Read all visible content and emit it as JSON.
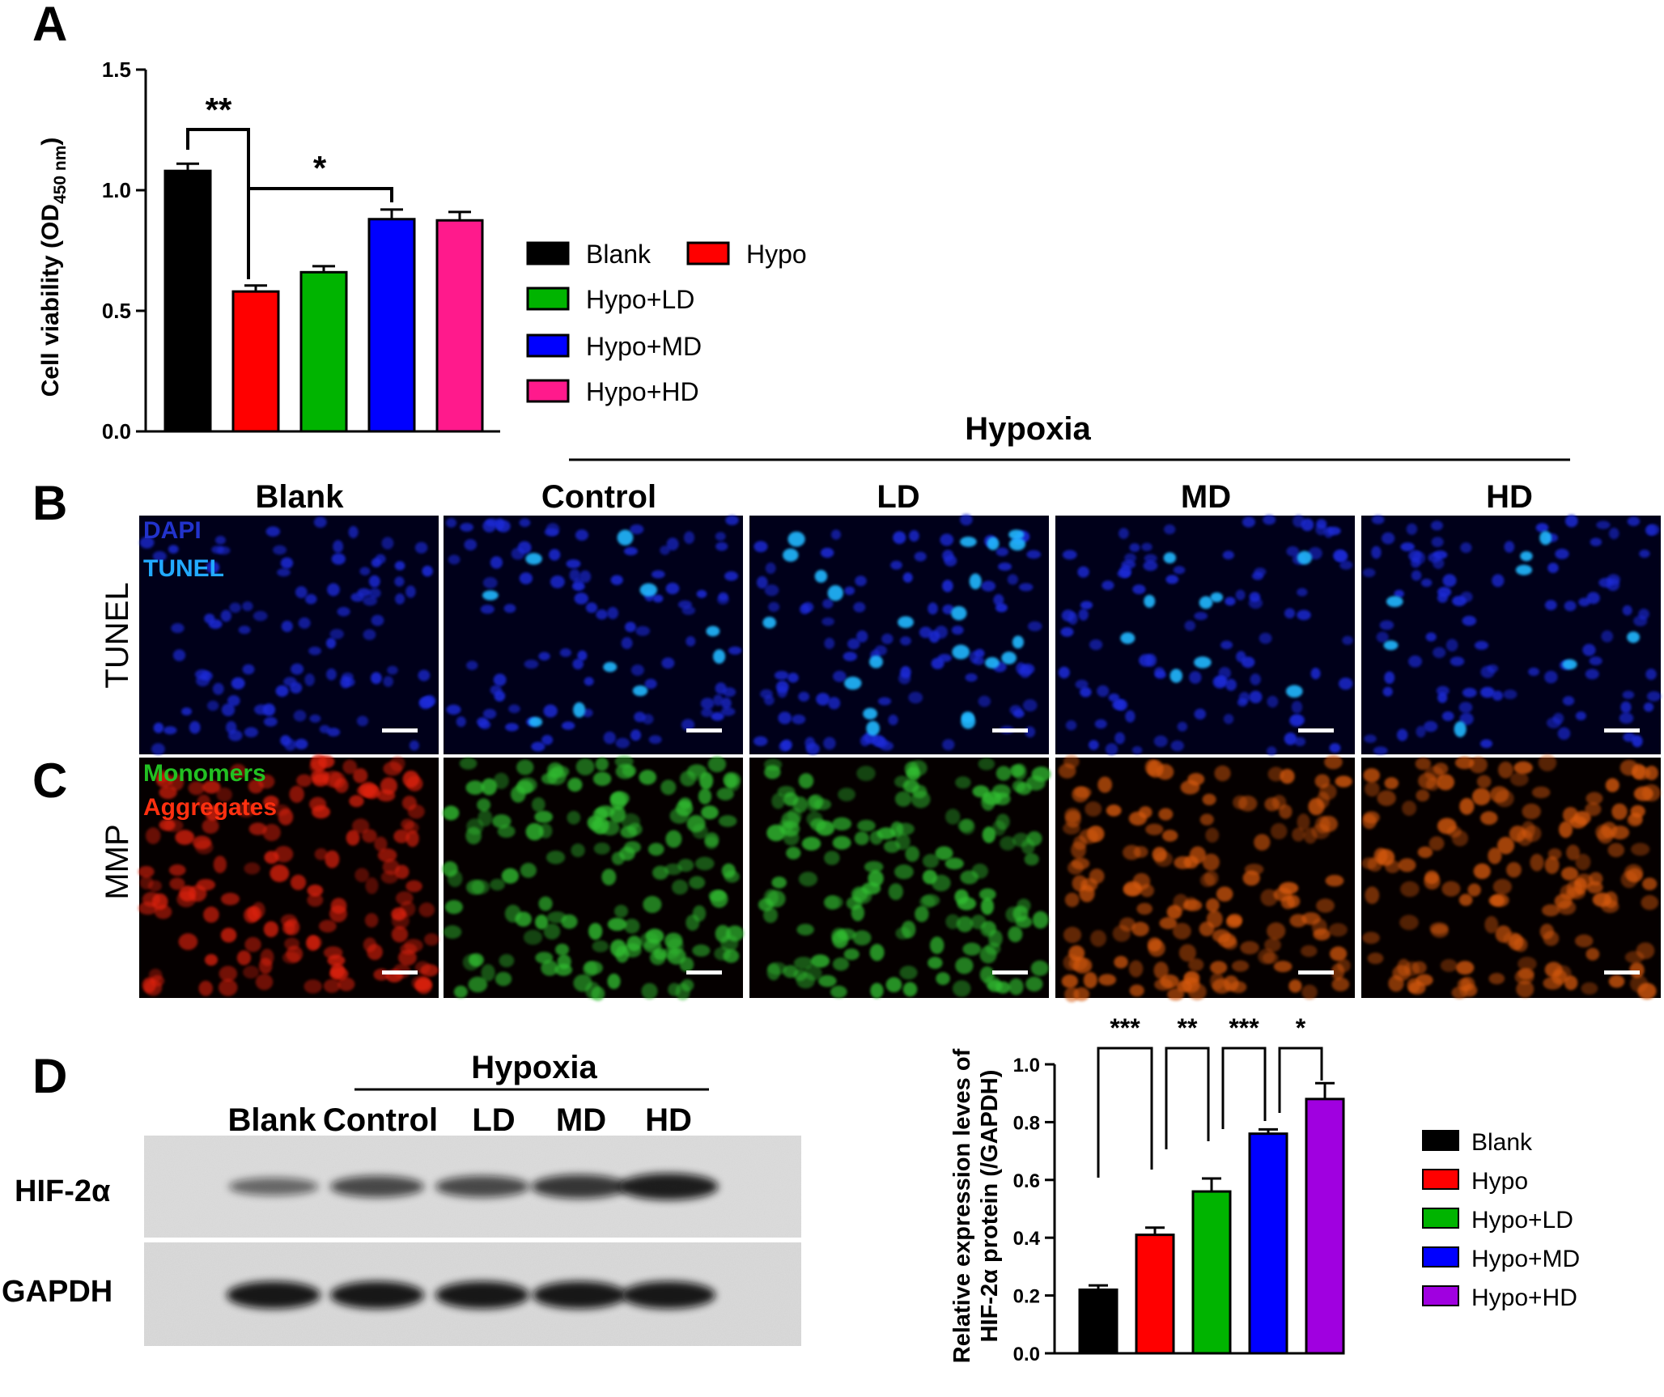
{
  "panels": {
    "a": "A",
    "b": "B",
    "c": "C",
    "d": "D"
  },
  "figure_a": {
    "ylabel_main": "Cell viability (OD",
    "ylabel_sub": "450 nm",
    "ylabel_close": ")",
    "sig_1": "**",
    "sig_2": "*"
  },
  "figure_bc": {
    "group_header": "Hypoxia",
    "columns": [
      "Blank",
      "Control",
      "LD",
      "MD",
      "HD"
    ],
    "row_labels": [
      "TUNEL",
      "MMP"
    ],
    "tunel_legend": [
      "DAPI",
      "TUNEL"
    ],
    "mmp_legend": [
      "Monomers",
      "Aggregates"
    ]
  },
  "figure_d_blot": {
    "group_header": "Hypoxia",
    "lanes": [
      "Blank",
      "Control",
      "LD",
      "MD",
      "HD"
    ],
    "bands": [
      "HIF-2α",
      "GAPDH"
    ],
    "hif_intensity": [
      0.35,
      0.6,
      0.6,
      0.75,
      0.95
    ],
    "gapdh_intensity": [
      1,
      1,
      1,
      1,
      1
    ]
  },
  "figure_d_chart": {
    "ylabel_line1": "Relative expression leves of",
    "ylabel_line2": "HIF-2α protein (/GAPDH)",
    "sig": [
      "***",
      "**",
      "***",
      "*"
    ]
  },
  "chart_data": [
    {
      "type": "bar",
      "categories": [
        "Blank",
        "Hypo",
        "Hypo+LD",
        "Hypo+MD",
        "Hypo+HD"
      ],
      "values": [
        1.08,
        0.58,
        0.66,
        0.88,
        0.875
      ],
      "errors": [
        0.03,
        0.025,
        0.025,
        0.04,
        0.035
      ],
      "colors": [
        "#000000",
        "#ff0000",
        "#00b400",
        "#0000ff",
        "#ff1a8c"
      ],
      "ylabel": "Cell viability (OD450 nm)",
      "ylim": [
        0,
        1.5
      ],
      "yticks": [
        "0.0",
        "0.5",
        "1.0",
        "1.5"
      ],
      "legend": [
        "Blank",
        "Hypo",
        "Hypo+LD",
        "Hypo+MD",
        "Hypo+HD"
      ],
      "significance": [
        "**",
        "*"
      ]
    },
    {
      "type": "bar",
      "categories": [
        "Blank",
        "Hypo",
        "Hypo+LD",
        "Hypo+MD",
        "Hypo+HD"
      ],
      "values": [
        0.22,
        0.41,
        0.56,
        0.76,
        0.88
      ],
      "errors": [
        0.015,
        0.025,
        0.045,
        0.015,
        0.055
      ],
      "colors": [
        "#000000",
        "#ff0000",
        "#00b400",
        "#0000ff",
        "#a000e0"
      ],
      "ylabel": "Relative expression leves of HIF-2α protein (/GAPDH)",
      "ylim": [
        0,
        1.0
      ],
      "yticks": [
        "0.0",
        "0.2",
        "0.4",
        "0.6",
        "0.8",
        "1.0"
      ],
      "legend": [
        "Blank",
        "Hypo",
        "Hypo+LD",
        "Hypo+MD",
        "Hypo+HD"
      ],
      "significance": [
        "***",
        "**",
        "***",
        "*"
      ]
    }
  ],
  "micro_colors": {
    "tunel_bg": "#00001a",
    "dapi": "#1a2ad8",
    "tunel": "#22b8ff",
    "mmp_bg": "#050000",
    "aggregates": "#e02010",
    "monomers": "#30c030",
    "mixed": "#d85a10"
  },
  "micro_density": {
    "tunel_positive": [
      0,
      10,
      22,
      9,
      8
    ]
  }
}
